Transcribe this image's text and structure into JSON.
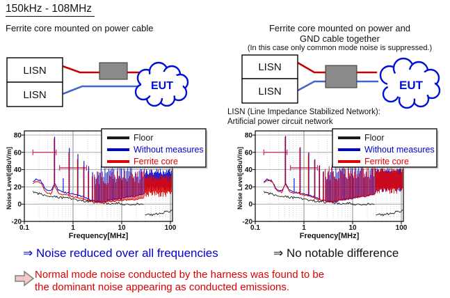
{
  "title": "150kHz - 108MHz",
  "left_panel": {
    "caption": "Ferrite core mounted on power cable",
    "diagram": {
      "lisn_top": "LISN",
      "lisn_bottom": "LISN",
      "eut": "EUT"
    },
    "conclusion": "⇒ Noise reduced over all frequencies"
  },
  "right_panel": {
    "caption_line1": "Ferrite core mounted on power and",
    "caption_line2": "GND cable together",
    "caption_note": "(In this case only common mode noise is suppressed.)",
    "diagram": {
      "lisn_top": "LISN",
      "lisn_bottom": "LISN",
      "eut": "EUT"
    },
    "lisn_note_line1": "LISN (Line Impedance Stabilized Network):",
    "lisn_note_line2": "Artificial power circuit network",
    "conclusion": "⇒ No notable difference"
  },
  "footnote": {
    "line1": "Normal mode noise conducted by the harness was found to be",
    "line2": "the dominant noise appearing as conducted emissions."
  },
  "colors": {
    "blue_text": "#0000cc",
    "red_text": "#dd0000",
    "wire_red": "#cc0000",
    "wire_blue": "#4466cc",
    "cloud_blue": "#0010d8",
    "ferrite_gray": "#8a8a8a",
    "limit_pink": "#cc3366"
  },
  "chart_data": [
    {
      "type": "line",
      "title": "Ferrite core on power cable only",
      "xlabel": "Frequency[MHz]",
      "ylabel": "Noise Level[dBuV/m]",
      "xscale": "log",
      "xlim": [
        0.1,
        110
      ],
      "ylim": [
        -20,
        80
      ],
      "xticks": [
        0.1,
        1,
        10,
        100
      ],
      "yticks": [
        80,
        60,
        40,
        20,
        0,
        -20
      ],
      "grid": true,
      "legend": [
        "Floor",
        "Without measures",
        "Ferrite core"
      ],
      "legend_position": "top-right",
      "limit_lines": [
        {
          "level": 60,
          "from": 0.15,
          "to": 0.45
        },
        {
          "level": 42,
          "from": 0.53,
          "to": 1.9
        }
      ],
      "series": {
        "floor": {
          "color": "#1a1a1a",
          "segments": [
            [
              [
                0.15,
                14
              ],
              [
                0.2,
                12
              ],
              [
                0.3,
                10
              ],
              [
                0.5,
                8
              ],
              [
                0.8,
                7
              ],
              [
                1.2,
                5
              ],
              [
                2,
                3
              ],
              [
                3,
                2
              ],
              [
                5,
                1
              ],
              [
                8,
                1
              ],
              [
                12,
                0
              ],
              [
                20,
                0
              ],
              [
                29,
                -1
              ]
            ],
            [
              [
                30,
                -13
              ],
              [
                45,
                -12
              ],
              [
                60,
                -11
              ],
              [
                80,
                -9
              ],
              [
                110,
                -8
              ]
            ]
          ]
        },
        "without_measures": {
          "color": "#0000cc",
          "baseline": [
            [
              0.15,
              26
            ],
            [
              0.18,
              29
            ],
            [
              0.22,
              27
            ],
            [
              0.28,
              16
            ],
            [
              0.35,
              15
            ],
            [
              0.42,
              24
            ],
            [
              0.5,
              16
            ],
            [
              0.6,
              14
            ],
            [
              0.8,
              13
            ],
            [
              1,
              12
            ],
            [
              1.3,
              10
            ],
            [
              1.7,
              8
            ],
            [
              2.2,
              5
            ],
            [
              3,
              3
            ],
            [
              4,
              3
            ],
            [
              5,
              4
            ],
            [
              6.5,
              5
            ],
            [
              8,
              6
            ],
            [
              10,
              7
            ],
            [
              13,
              8
            ],
            [
              17,
              9
            ],
            [
              22,
              10
            ],
            [
              29,
              12
            ]
          ],
          "spikes": [
            [
              0.42,
              78
            ],
            [
              0.63,
              30
            ],
            [
              0.84,
              65
            ],
            [
              1.26,
              58
            ],
            [
              1.68,
              50
            ],
            [
              2.1,
              44
            ],
            [
              2.52,
              37
            ]
          ],
          "comb": {
            "from": 2.8,
            "to": 29,
            "count": 40,
            "top_min": 28,
            "top_max": 45
          },
          "band_30_110MHz": {
            "top": [
              34,
              41
            ],
            "bottom": [
              14,
              21
            ]
          }
        },
        "ferrite_core": {
          "color": "#e00000",
          "baseline": [
            [
              0.15,
              24
            ],
            [
              0.18,
              27
            ],
            [
              0.22,
              24
            ],
            [
              0.28,
              13
            ],
            [
              0.35,
              12
            ],
            [
              0.42,
              21
            ],
            [
              0.5,
              13
            ],
            [
              0.6,
              11
            ],
            [
              0.8,
              10
            ],
            [
              1,
              9
            ],
            [
              1.3,
              7
            ],
            [
              1.7,
              6
            ],
            [
              2.2,
              4
            ],
            [
              3,
              2
            ],
            [
              4,
              2
            ],
            [
              5,
              3
            ],
            [
              6.5,
              3
            ],
            [
              8,
              4
            ],
            [
              10,
              4
            ],
            [
              13,
              5
            ],
            [
              17,
              5
            ],
            [
              22,
              6
            ],
            [
              29,
              7
            ]
          ],
          "spikes": [
            [
              0.42,
              76
            ],
            [
              0.84,
              60
            ],
            [
              1.26,
              52
            ],
            [
              1.68,
              44
            ],
            [
              2.1,
              38
            ],
            [
              2.52,
              32
            ]
          ],
          "comb": {
            "from": 2.8,
            "to": 29,
            "count": 40,
            "top_min": 22,
            "top_max": 38
          },
          "band_30_110MHz": {
            "top": [
              27,
              35
            ],
            "bottom": [
              8,
              15
            ]
          }
        }
      }
    },
    {
      "type": "line",
      "title": "Ferrite core on power and GND cable together",
      "xlabel": "Frequency[MHz]",
      "ylabel": "Noise Level[dBuV/m]",
      "xscale": "log",
      "xlim": [
        0.1,
        110
      ],
      "ylim": [
        -20,
        80
      ],
      "xticks": [
        0.1,
        1,
        10,
        100
      ],
      "yticks": [
        80,
        60,
        40,
        20,
        0,
        -20
      ],
      "grid": true,
      "legend": [
        "Floor",
        "Without measures",
        "Ferrite core"
      ],
      "legend_position": "top-right",
      "limit_lines": [
        {
          "level": 60,
          "from": 0.15,
          "to": 0.45
        },
        {
          "level": 42,
          "from": 0.53,
          "to": 1.9
        }
      ],
      "series": {
        "floor": {
          "color": "#1a1a1a",
          "segments": [
            [
              [
                0.15,
                14
              ],
              [
                0.2,
                12
              ],
              [
                0.3,
                10
              ],
              [
                0.5,
                8
              ],
              [
                0.8,
                7
              ],
              [
                1.2,
                5
              ],
              [
                2,
                3
              ],
              [
                3,
                2
              ],
              [
                5,
                1
              ],
              [
                8,
                1
              ],
              [
                12,
                0
              ],
              [
                20,
                0
              ],
              [
                29,
                -1
              ]
            ],
            [
              [
                30,
                -13
              ],
              [
                45,
                -12
              ],
              [
                60,
                -11
              ],
              [
                80,
                -9
              ],
              [
                110,
                -8
              ]
            ]
          ]
        },
        "without_measures": {
          "color": "#0000cc",
          "baseline": [
            [
              0.15,
              26
            ],
            [
              0.18,
              29
            ],
            [
              0.22,
              27
            ],
            [
              0.28,
              16
            ],
            [
              0.35,
              15
            ],
            [
              0.42,
              24
            ],
            [
              0.5,
              16
            ],
            [
              0.6,
              14
            ],
            [
              0.8,
              13
            ],
            [
              1,
              12
            ],
            [
              1.3,
              10
            ],
            [
              1.7,
              8
            ],
            [
              2.2,
              5
            ],
            [
              3,
              3
            ],
            [
              4,
              3
            ],
            [
              5,
              4
            ],
            [
              6.5,
              5
            ],
            [
              8,
              6
            ],
            [
              10,
              7
            ],
            [
              13,
              8
            ],
            [
              17,
              9
            ],
            [
              22,
              10
            ],
            [
              29,
              12
            ]
          ],
          "spikes": [
            [
              0.42,
              79
            ],
            [
              0.63,
              30
            ],
            [
              0.84,
              66
            ],
            [
              1.26,
              60
            ],
            [
              1.68,
              52
            ],
            [
              2.1,
              45
            ],
            [
              2.52,
              38
            ]
          ],
          "comb": {
            "from": 2.8,
            "to": 29,
            "count": 40,
            "top_min": 28,
            "top_max": 46
          },
          "band_30_110MHz": {
            "top": [
              36,
              42
            ],
            "bottom": [
              14,
              20
            ]
          }
        },
        "ferrite_core": {
          "color": "#e00000",
          "baseline": [
            [
              0.15,
              25
            ],
            [
              0.18,
              28
            ],
            [
              0.22,
              26
            ],
            [
              0.28,
              15
            ],
            [
              0.35,
              14
            ],
            [
              0.42,
              23
            ],
            [
              0.5,
              15
            ],
            [
              0.6,
              13
            ],
            [
              0.8,
              12
            ],
            [
              1,
              11
            ],
            [
              1.3,
              9
            ],
            [
              1.7,
              7
            ],
            [
              2.2,
              5
            ],
            [
              3,
              3
            ],
            [
              4,
              3
            ],
            [
              5,
              4
            ],
            [
              6.5,
              5
            ],
            [
              8,
              6
            ],
            [
              10,
              7
            ],
            [
              13,
              8
            ],
            [
              17,
              9
            ],
            [
              22,
              10
            ],
            [
              29,
              11
            ]
          ],
          "spikes": [
            [
              0.42,
              78
            ],
            [
              0.84,
              65
            ],
            [
              1.26,
              59
            ],
            [
              1.68,
              51
            ],
            [
              2.1,
              44
            ],
            [
              2.52,
              37
            ]
          ],
          "comb": {
            "from": 2.8,
            "to": 29,
            "count": 40,
            "top_min": 27,
            "top_max": 45
          },
          "band_30_110MHz": {
            "top": [
              35,
              42
            ],
            "bottom": [
              12,
              19
            ]
          }
        }
      }
    }
  ]
}
